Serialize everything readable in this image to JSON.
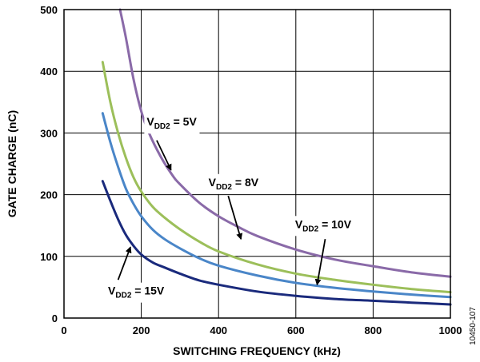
{
  "chart_data": {
    "type": "line",
    "title": "",
    "xlabel": "SWITCHING FREQUENCY (kHz)",
    "ylabel": "GATE CHARGE (nC)",
    "xlim": [
      0,
      1000
    ],
    "ylim": [
      0,
      500
    ],
    "x_ticks": [
      "0",
      "200",
      "400",
      "600",
      "800",
      "1000"
    ],
    "y_ticks": [
      "0",
      "100",
      "200",
      "300",
      "400",
      "500"
    ],
    "grid": true,
    "legend": "inline labels with arrows",
    "series": [
      {
        "name": "VDD2 = 5V",
        "label_main": "V",
        "label_sub": "DD2",
        "label_rest": " = 5V",
        "color": "#8a6aa8",
        "x": [
          145,
          160,
          180,
          200,
          220,
          250,
          280,
          300,
          350,
          400,
          450,
          500,
          600,
          700,
          800,
          900,
          1000
        ],
        "y": [
          500,
          455,
          387,
          335,
          300,
          262,
          232,
          217,
          187,
          165,
          148,
          133,
          111,
          95,
          84,
          74,
          67
        ]
      },
      {
        "name": "VDD2 = 8V",
        "label_main": "V",
        "label_sub": "DD2",
        "label_rest": " = 8V",
        "color": "#9cbf5a",
        "x": [
          100,
          120,
          140,
          160,
          180,
          200,
          230,
          260,
          300,
          350,
          400,
          500,
          600,
          700,
          800,
          900,
          1000
        ],
        "y": [
          415,
          350,
          300,
          260,
          228,
          205,
          180,
          163,
          144,
          124,
          108,
          87,
          72,
          62,
          54,
          47,
          42
        ]
      },
      {
        "name": "VDD2 = 10V",
        "label_main": "V",
        "label_sub": "DD2",
        "label_rest": " = 10V",
        "color": "#4a86c8",
        "x": [
          100,
          120,
          140,
          160,
          180,
          200,
          230,
          260,
          300,
          350,
          400,
          500,
          600,
          700,
          800,
          900,
          1000
        ],
        "y": [
          332,
          285,
          245,
          210,
          185,
          165,
          143,
          128,
          113,
          97,
          85,
          69,
          57,
          49,
          43,
          38,
          34
        ]
      },
      {
        "name": "VDD2 = 15V",
        "label_main": "V",
        "label_sub": "DD2",
        "label_rest": " = 15V",
        "color": "#1a2a7c",
        "x": [
          100,
          120,
          140,
          160,
          180,
          200,
          230,
          260,
          300,
          350,
          400,
          500,
          600,
          700,
          800,
          900,
          1000
        ],
        "y": [
          222,
          190,
          160,
          135,
          117,
          103,
          90,
          82,
          72,
          61,
          54,
          43,
          36,
          31,
          28,
          25,
          22
        ]
      }
    ],
    "annotations": [
      {
        "series": 0,
        "text_at": [
          214,
          312
        ],
        "arrow_from": [
          240,
          288
        ],
        "arrow_to": [
          277,
          240
        ]
      },
      {
        "series": 1,
        "text_at": [
          374,
          214
        ],
        "arrow_from": [
          425,
          198
        ],
        "arrow_to": [
          458,
          128
        ]
      },
      {
        "series": 2,
        "text_at": [
          598,
          146
        ],
        "arrow_from": [
          676,
          128
        ],
        "arrow_to": [
          655,
          54
        ]
      },
      {
        "series": 3,
        "text_at": [
          114,
          38
        ],
        "arrow_from": [
          140,
          62
        ],
        "arrow_to": [
          172,
          115
        ]
      }
    ]
  },
  "figure_code": "10450-107"
}
